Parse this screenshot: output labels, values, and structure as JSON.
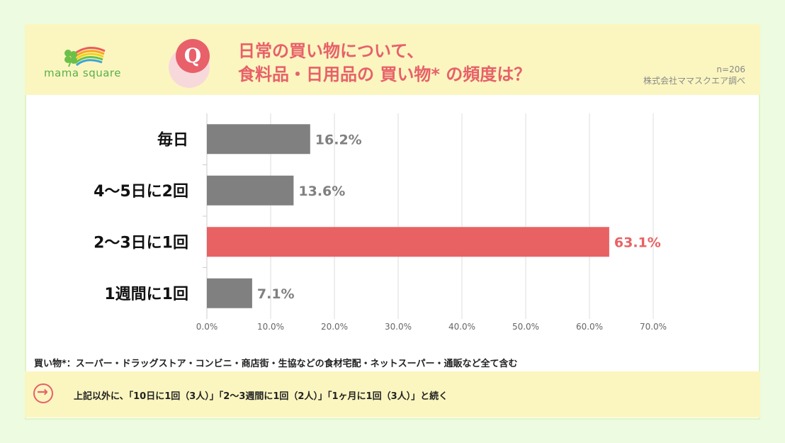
{
  "header": {
    "logo_text": "mama square",
    "q_label": "Q",
    "title_line1": "日常の買い物について、",
    "title_line2": "食料品・日用品の 買い物* の頻度は？",
    "sample": "n=206",
    "source": "株式会社ママスクエア調べ"
  },
  "chart_data": {
    "type": "bar",
    "orientation": "horizontal",
    "categories": [
      "毎日",
      "4〜5日に2回",
      "2〜3日に1回",
      "1週間に1回"
    ],
    "values": [
      16.2,
      13.6,
      63.1,
      7.1
    ],
    "value_labels": [
      "16.2%",
      "13.6%",
      "63.1%",
      "7.1%"
    ],
    "highlight_index": 2,
    "xlim": [
      0,
      70
    ],
    "xticks": [
      "0.0%",
      "10.0%",
      "20.0%",
      "30.0%",
      "40.0%",
      "50.0%",
      "60.0%",
      "70.0%"
    ],
    "grid": true,
    "colors": {
      "default": "#808080",
      "highlight": "#e86264"
    }
  },
  "footnote": "買い物*：スーパー・ドラッグストア・コンビニ・商店街・生協などの食材宅配・ネットスーパー・通販など全て含む",
  "bottom": {
    "arrow_icon": "→",
    "text": "上記以外に、「10日に1回（3人）」「2〜3週間に1回（2人）」「1ヶ月に1回（3人）」と続く"
  }
}
